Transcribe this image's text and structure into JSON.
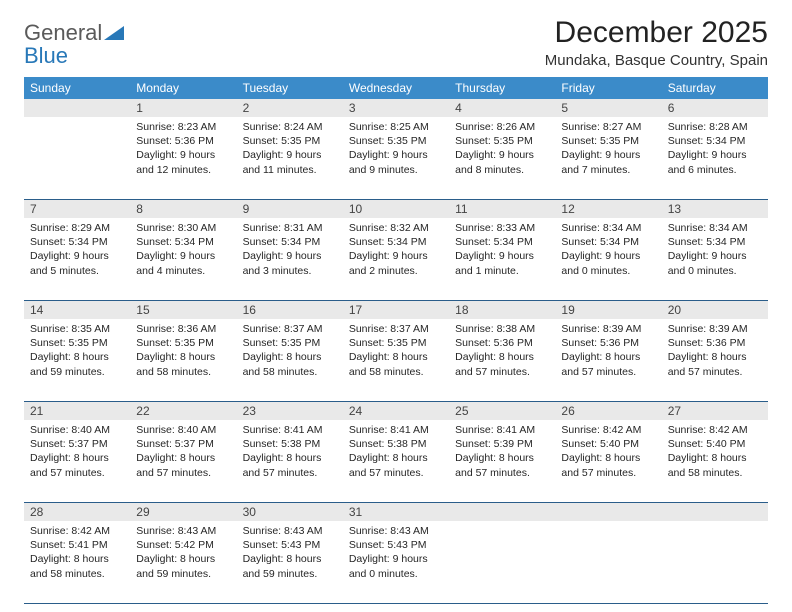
{
  "brand": {
    "part1": "General",
    "part2": "Blue"
  },
  "title": "December 2025",
  "location": "Mundaka, Basque Country, Spain",
  "colors": {
    "header_bg": "#3b8bc9",
    "header_text": "#ffffff",
    "daynum_bg": "#e9e9e9",
    "rule": "#2a5d8a",
    "brand_gray": "#5a5a5a",
    "brand_blue": "#2878b8"
  },
  "day_names": [
    "Sunday",
    "Monday",
    "Tuesday",
    "Wednesday",
    "Thursday",
    "Friday",
    "Saturday"
  ],
  "weeks": [
    [
      {
        "day": "",
        "sunrise": "",
        "sunset": "",
        "daylight": ""
      },
      {
        "day": "1",
        "sunrise": "Sunrise: 8:23 AM",
        "sunset": "Sunset: 5:36 PM",
        "daylight": "Daylight: 9 hours and 12 minutes."
      },
      {
        "day": "2",
        "sunrise": "Sunrise: 8:24 AM",
        "sunset": "Sunset: 5:35 PM",
        "daylight": "Daylight: 9 hours and 11 minutes."
      },
      {
        "day": "3",
        "sunrise": "Sunrise: 8:25 AM",
        "sunset": "Sunset: 5:35 PM",
        "daylight": "Daylight: 9 hours and 9 minutes."
      },
      {
        "day": "4",
        "sunrise": "Sunrise: 8:26 AM",
        "sunset": "Sunset: 5:35 PM",
        "daylight": "Daylight: 9 hours and 8 minutes."
      },
      {
        "day": "5",
        "sunrise": "Sunrise: 8:27 AM",
        "sunset": "Sunset: 5:35 PM",
        "daylight": "Daylight: 9 hours and 7 minutes."
      },
      {
        "day": "6",
        "sunrise": "Sunrise: 8:28 AM",
        "sunset": "Sunset: 5:34 PM",
        "daylight": "Daylight: 9 hours and 6 minutes."
      }
    ],
    [
      {
        "day": "7",
        "sunrise": "Sunrise: 8:29 AM",
        "sunset": "Sunset: 5:34 PM",
        "daylight": "Daylight: 9 hours and 5 minutes."
      },
      {
        "day": "8",
        "sunrise": "Sunrise: 8:30 AM",
        "sunset": "Sunset: 5:34 PM",
        "daylight": "Daylight: 9 hours and 4 minutes."
      },
      {
        "day": "9",
        "sunrise": "Sunrise: 8:31 AM",
        "sunset": "Sunset: 5:34 PM",
        "daylight": "Daylight: 9 hours and 3 minutes."
      },
      {
        "day": "10",
        "sunrise": "Sunrise: 8:32 AM",
        "sunset": "Sunset: 5:34 PM",
        "daylight": "Daylight: 9 hours and 2 minutes."
      },
      {
        "day": "11",
        "sunrise": "Sunrise: 8:33 AM",
        "sunset": "Sunset: 5:34 PM",
        "daylight": "Daylight: 9 hours and 1 minute."
      },
      {
        "day": "12",
        "sunrise": "Sunrise: 8:34 AM",
        "sunset": "Sunset: 5:34 PM",
        "daylight": "Daylight: 9 hours and 0 minutes."
      },
      {
        "day": "13",
        "sunrise": "Sunrise: 8:34 AM",
        "sunset": "Sunset: 5:34 PM",
        "daylight": "Daylight: 9 hours and 0 minutes."
      }
    ],
    [
      {
        "day": "14",
        "sunrise": "Sunrise: 8:35 AM",
        "sunset": "Sunset: 5:35 PM",
        "daylight": "Daylight: 8 hours and 59 minutes."
      },
      {
        "day": "15",
        "sunrise": "Sunrise: 8:36 AM",
        "sunset": "Sunset: 5:35 PM",
        "daylight": "Daylight: 8 hours and 58 minutes."
      },
      {
        "day": "16",
        "sunrise": "Sunrise: 8:37 AM",
        "sunset": "Sunset: 5:35 PM",
        "daylight": "Daylight: 8 hours and 58 minutes."
      },
      {
        "day": "17",
        "sunrise": "Sunrise: 8:37 AM",
        "sunset": "Sunset: 5:35 PM",
        "daylight": "Daylight: 8 hours and 58 minutes."
      },
      {
        "day": "18",
        "sunrise": "Sunrise: 8:38 AM",
        "sunset": "Sunset: 5:36 PM",
        "daylight": "Daylight: 8 hours and 57 minutes."
      },
      {
        "day": "19",
        "sunrise": "Sunrise: 8:39 AM",
        "sunset": "Sunset: 5:36 PM",
        "daylight": "Daylight: 8 hours and 57 minutes."
      },
      {
        "day": "20",
        "sunrise": "Sunrise: 8:39 AM",
        "sunset": "Sunset: 5:36 PM",
        "daylight": "Daylight: 8 hours and 57 minutes."
      }
    ],
    [
      {
        "day": "21",
        "sunrise": "Sunrise: 8:40 AM",
        "sunset": "Sunset: 5:37 PM",
        "daylight": "Daylight: 8 hours and 57 minutes."
      },
      {
        "day": "22",
        "sunrise": "Sunrise: 8:40 AM",
        "sunset": "Sunset: 5:37 PM",
        "daylight": "Daylight: 8 hours and 57 minutes."
      },
      {
        "day": "23",
        "sunrise": "Sunrise: 8:41 AM",
        "sunset": "Sunset: 5:38 PM",
        "daylight": "Daylight: 8 hours and 57 minutes."
      },
      {
        "day": "24",
        "sunrise": "Sunrise: 8:41 AM",
        "sunset": "Sunset: 5:38 PM",
        "daylight": "Daylight: 8 hours and 57 minutes."
      },
      {
        "day": "25",
        "sunrise": "Sunrise: 8:41 AM",
        "sunset": "Sunset: 5:39 PM",
        "daylight": "Daylight: 8 hours and 57 minutes."
      },
      {
        "day": "26",
        "sunrise": "Sunrise: 8:42 AM",
        "sunset": "Sunset: 5:40 PM",
        "daylight": "Daylight: 8 hours and 57 minutes."
      },
      {
        "day": "27",
        "sunrise": "Sunrise: 8:42 AM",
        "sunset": "Sunset: 5:40 PM",
        "daylight": "Daylight: 8 hours and 58 minutes."
      }
    ],
    [
      {
        "day": "28",
        "sunrise": "Sunrise: 8:42 AM",
        "sunset": "Sunset: 5:41 PM",
        "daylight": "Daylight: 8 hours and 58 minutes."
      },
      {
        "day": "29",
        "sunrise": "Sunrise: 8:43 AM",
        "sunset": "Sunset: 5:42 PM",
        "daylight": "Daylight: 8 hours and 59 minutes."
      },
      {
        "day": "30",
        "sunrise": "Sunrise: 8:43 AM",
        "sunset": "Sunset: 5:43 PM",
        "daylight": "Daylight: 8 hours and 59 minutes."
      },
      {
        "day": "31",
        "sunrise": "Sunrise: 8:43 AM",
        "sunset": "Sunset: 5:43 PM",
        "daylight": "Daylight: 9 hours and 0 minutes."
      },
      {
        "day": "",
        "sunrise": "",
        "sunset": "",
        "daylight": ""
      },
      {
        "day": "",
        "sunrise": "",
        "sunset": "",
        "daylight": ""
      },
      {
        "day": "",
        "sunrise": "",
        "sunset": "",
        "daylight": ""
      }
    ]
  ]
}
